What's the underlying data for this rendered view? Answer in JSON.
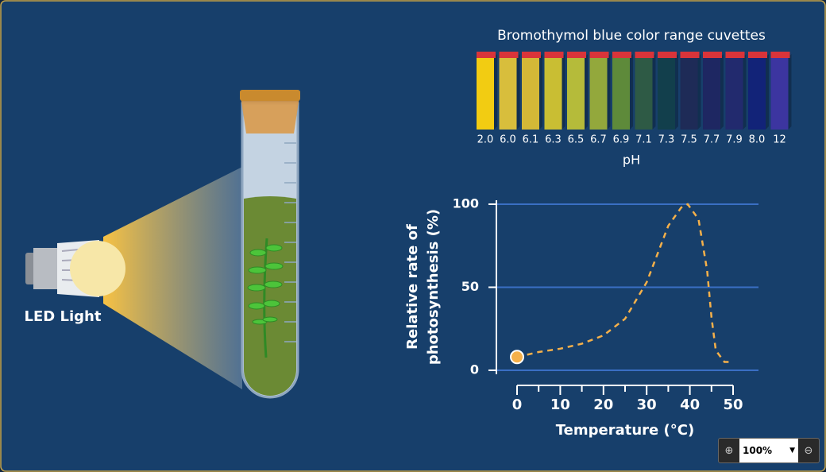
{
  "lamp": {
    "label": "LED Light"
  },
  "cuvettes": {
    "title": "Bromothymol blue color range cuvettes",
    "ph_labels": [
      "2.0",
      "6.0",
      "6.1",
      "6.3",
      "6.5",
      "6.7",
      "6.9",
      "7.1",
      "7.3",
      "7.5",
      "7.7",
      "7.9",
      "8.0",
      "12"
    ],
    "colors": [
      "#f2cc12",
      "#d8be3c",
      "#d4b837",
      "#c9be33",
      "#b5bb3a",
      "#93a83c",
      "#5e8a3a",
      "#2e5a45",
      "#123f4c",
      "#1e2b57",
      "#1e2762",
      "#222a6e",
      "#122378",
      "#3c35a0"
    ],
    "axis_label": "pH"
  },
  "chart_data": {
    "type": "line",
    "ylabel": [
      "Relative rate of",
      "photosynthesis (%)"
    ],
    "xlabel": "Temperature (°C)",
    "x": [
      0,
      5,
      10,
      15,
      20,
      25,
      30,
      35,
      38,
      39.5,
      42,
      44,
      45,
      46,
      48,
      50
    ],
    "values": [
      8,
      11,
      13,
      16,
      21,
      31,
      53,
      87,
      98,
      100,
      91,
      60,
      32,
      12,
      5,
      5
    ],
    "color": "#f5b04a",
    "dashed": true,
    "current_point": {
      "x": 0,
      "y": 8
    },
    "xlim": [
      0,
      50
    ],
    "ylim": [
      0,
      100
    ],
    "xticks": [
      0,
      10,
      20,
      30,
      40,
      50
    ],
    "x_minor_ticks": [
      5,
      15,
      25,
      35,
      45
    ],
    "yticks": [
      0,
      50,
      100
    ],
    "grid": true,
    "grid_color": "#3a6fc4"
  },
  "zoom": {
    "level": "100%"
  }
}
